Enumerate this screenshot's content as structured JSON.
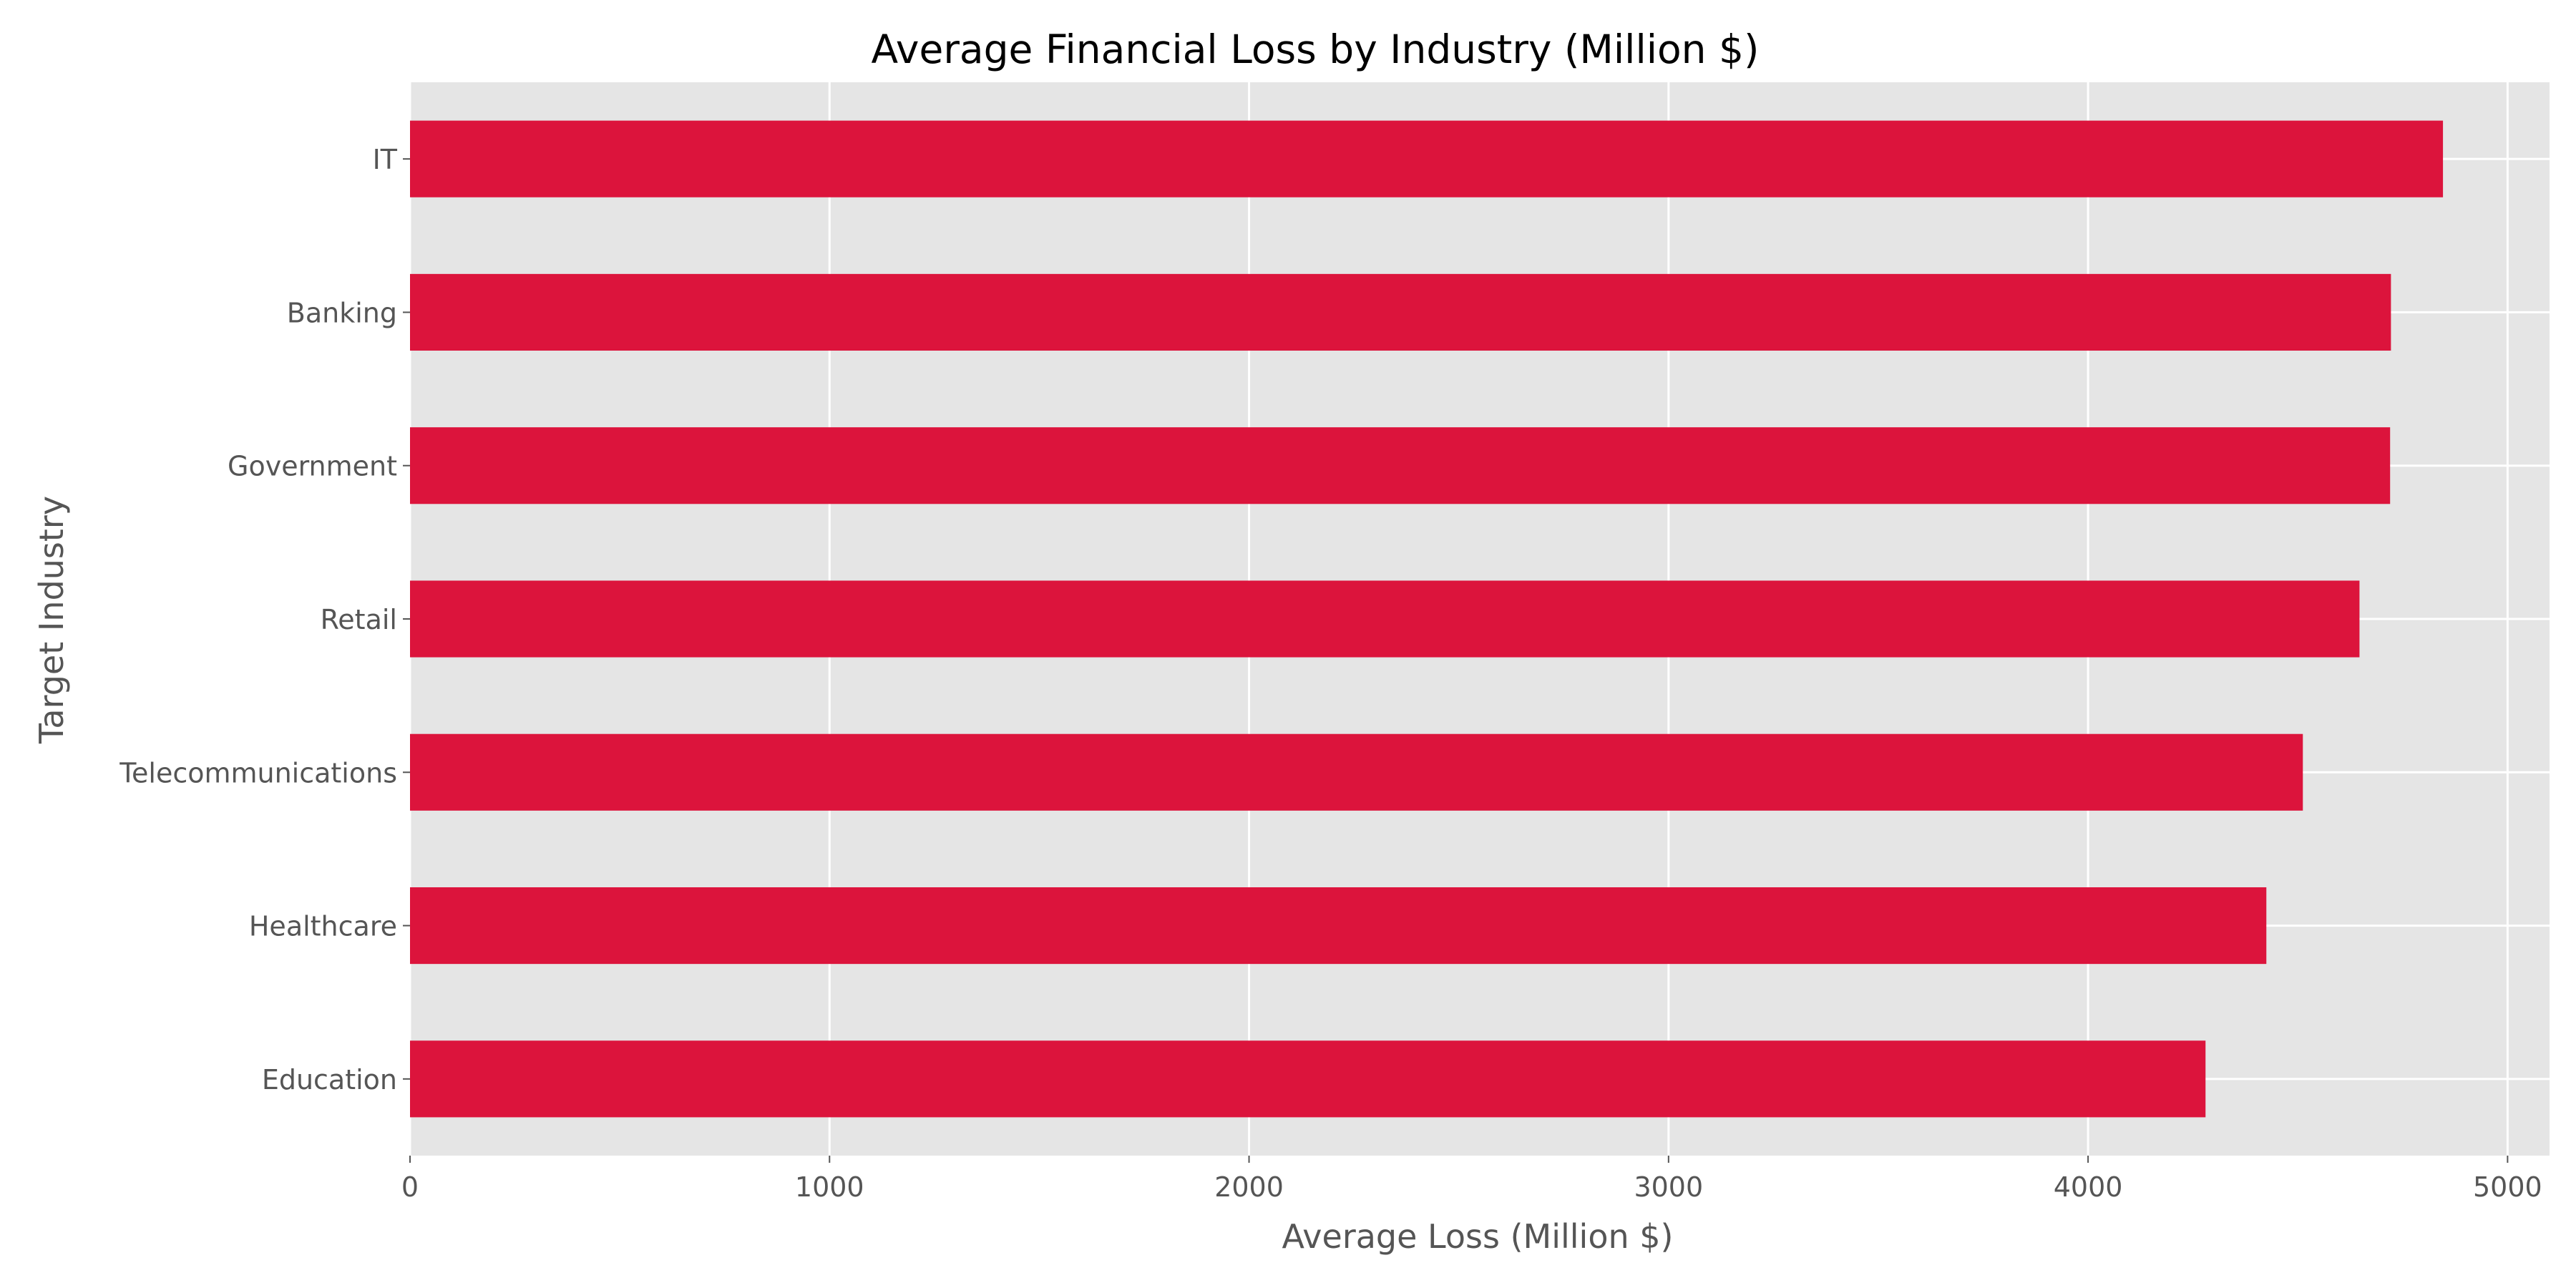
{
  "chart_data": {
    "type": "bar",
    "orientation": "horizontal",
    "title": "Average Financial Loss by Industry (Million $)",
    "xlabel": "Average Loss (Million $)",
    "ylabel": "Target Industry",
    "categories": [
      "IT",
      "Banking",
      "Government",
      "Retail",
      "Telecommunications",
      "Healthcare",
      "Education"
    ],
    "values": [
      4846,
      4722,
      4720,
      4647,
      4512,
      4425,
      4280
    ],
    "xlim": [
      0,
      5100
    ],
    "xticks": [
      0,
      1000,
      2000,
      3000,
      4000,
      5000
    ],
    "xtick_labels": [
      "0",
      "1000",
      "2000",
      "3000",
      "4000",
      "5000"
    ],
    "grid": true,
    "colors": {
      "bar": "#DC143C",
      "plot_background": "#E5E5E5",
      "grid": "#FFFFFF",
      "axis_text": "#555555",
      "title_text": "#000000"
    }
  }
}
